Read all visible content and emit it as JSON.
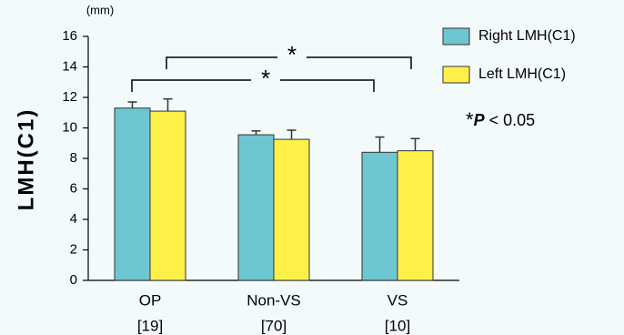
{
  "chart_data": {
    "type": "bar",
    "y_unit": "(mm)",
    "y_label": "LMH(C1)",
    "categories": [
      "OP",
      "Non-VS",
      "VS"
    ],
    "category_counts": [
      "[19]",
      "[70]",
      "[10]"
    ],
    "series": [
      {
        "name": "Right LMH(C1)",
        "color": "#6ec6d0",
        "values": [
          11.3,
          9.55,
          8.4
        ],
        "errors": [
          0.4,
          0.25,
          1.0
        ]
      },
      {
        "name": "Left LMH(C1)",
        "color": "#fff04a",
        "values": [
          11.1,
          9.25,
          8.5
        ],
        "errors": [
          0.8,
          0.6,
          0.8
        ]
      }
    ],
    "ylim": [
      0,
      16
    ],
    "yticks": [
      0,
      2,
      4,
      6,
      8,
      10,
      12,
      14,
      16
    ],
    "significance": [
      "*",
      "*"
    ],
    "note": {
      "symbol": "*",
      "stat": "P",
      "text": " < 0.05"
    }
  }
}
